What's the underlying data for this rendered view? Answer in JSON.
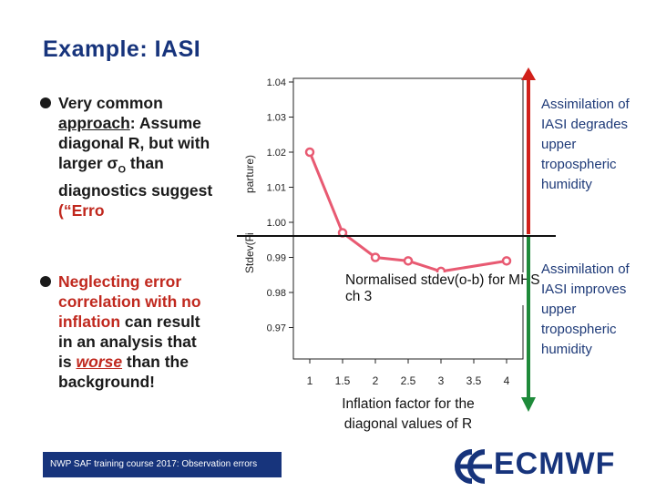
{
  "slide": {
    "title": "Example: IASI"
  },
  "bullet1": {
    "line1": "Very common",
    "line2_u": "approach",
    "line2_rest": ": Assume",
    "line3": "diagonal R, but with",
    "line4": "larger σ",
    "line4_sub": "O",
    "line4_rest": " than",
    "line5": "diagnostics suggest",
    "line6_start": "(“Erro"
  },
  "bullet2": {
    "line1": "Neglecting error",
    "line2": "correlation with no",
    "line3_red": "inflation",
    "line3_rest": " can result",
    "line4": "in an analysis that",
    "line5_start": "is ",
    "line5_red": "worse",
    "line5_rest": " than the",
    "line6": "background!"
  },
  "chart_data": {
    "type": "line",
    "title": "Normalised stdev(o-b) for MHS ch 3",
    "ylabel": "Stdev(FG departure)",
    "ylabel_visible_top": "parture)",
    "ylabel_visible_bottom": "Stdev(Fi",
    "xlabel": "Inflation factor for the diagonal values of R",
    "x": [
      1,
      1.5,
      2,
      2.5,
      3,
      3.5,
      4
    ],
    "x_tick_labels": [
      "1",
      "1.5",
      "2",
      "2.5",
      "3",
      "3.5",
      "4"
    ],
    "xlim": [
      1,
      4
    ],
    "series": [
      {
        "x": [
          1,
          1.5,
          2,
          2.5,
          3,
          4
        ],
        "values": [
          1.02,
          0.997,
          0.99,
          0.989,
          0.986,
          0.989
        ],
        "color": "#e85a72"
      }
    ],
    "ylim": [
      0.96,
      1.04
    ],
    "y_ticks": [
      0.97,
      0.98,
      0.99,
      1.0,
      1.01,
      1.02,
      1.03,
      1.04
    ],
    "y_tick_labels": [
      "0.97",
      "0.98",
      "0.99",
      "1.00",
      "1.01",
      "1.02",
      "1.03",
      "1.04"
    ],
    "reference_line": 1.0
  },
  "notes": {
    "degrade": [
      "Assimilation of",
      "IASI degrades",
      "upper",
      "tropospheric",
      "humidity"
    ],
    "improve": [
      "Assimilation of",
      "IASI improves",
      "upper",
      "tropospheric",
      "humidity"
    ],
    "arrow_degrade_color": "#d1201a",
    "arrow_improve_color": "#1e8a3a"
  },
  "footer": {
    "text": "NWP SAF training course 2017: Observation errors",
    "logo_text": "ECMWF"
  },
  "colors": {
    "title": "#17347c",
    "accent_red": "#c0281e",
    "footer_bg": "#17347c"
  }
}
